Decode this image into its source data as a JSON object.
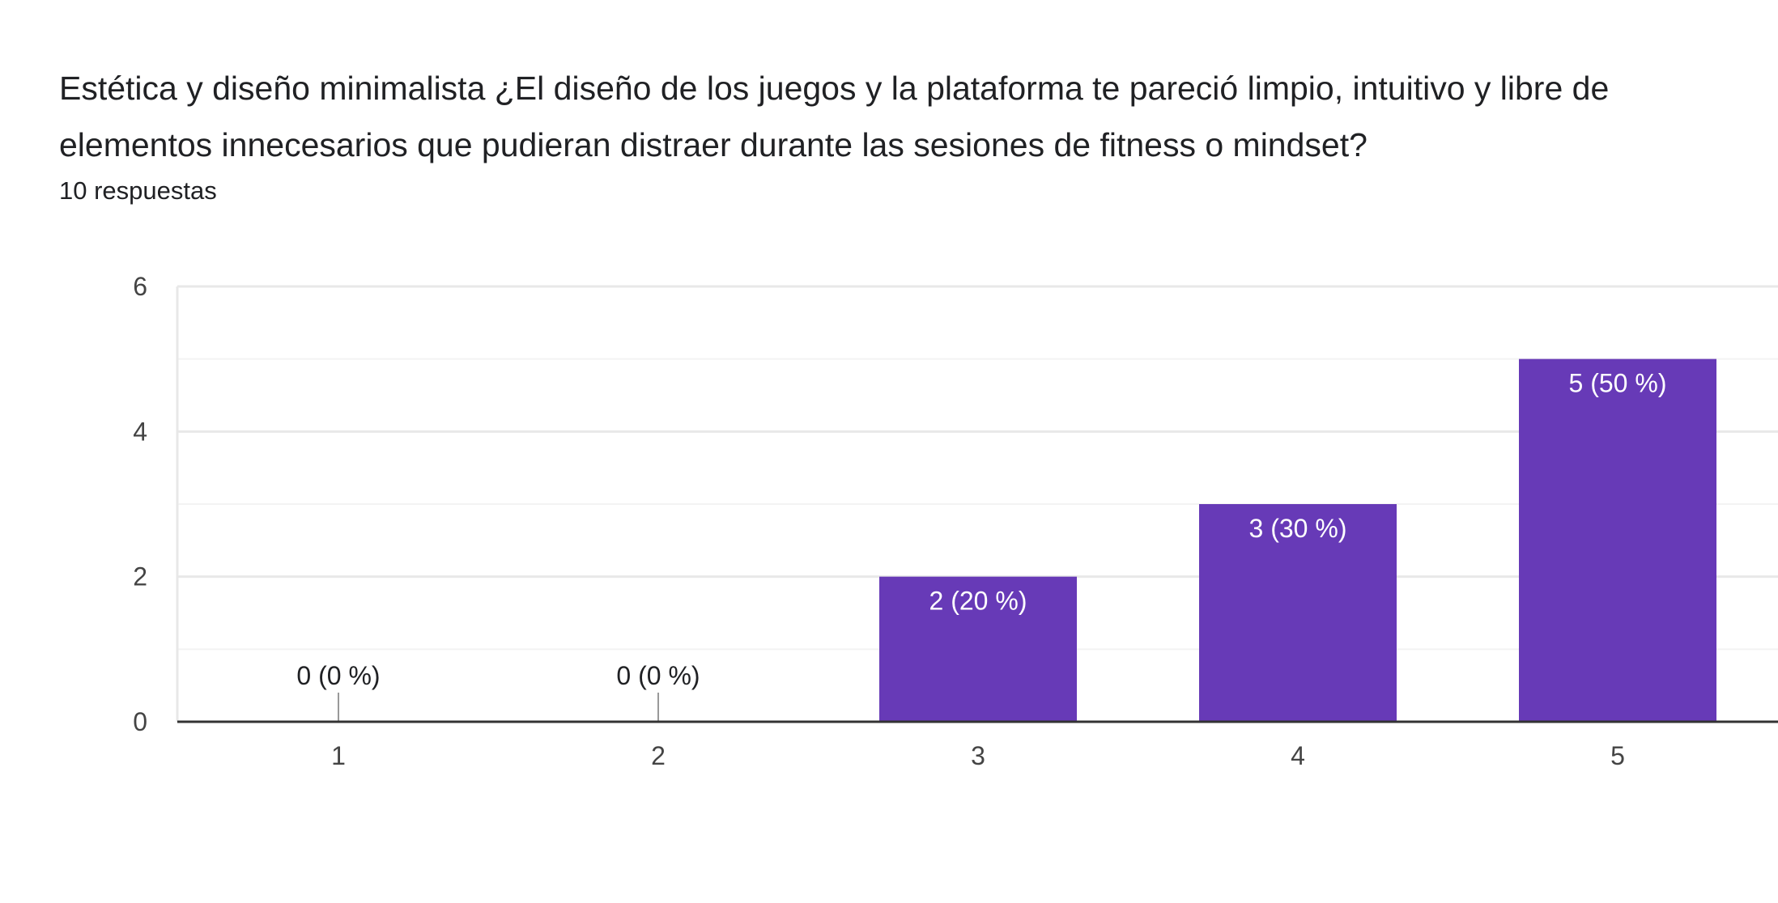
{
  "header": {
    "title": "Estética y diseño minimalista   ¿El diseño de los juegos y la plataforma te pareció limpio, intuitivo y libre de elementos innecesarios que pudieran distraer durante las sesiones de fitness o mindset?",
    "responses": "10 respuestas"
  },
  "colors": {
    "bar": "#673ab7",
    "grid": "#e8e8e8",
    "axis": "#333333",
    "label_inside": "#ffffff",
    "label_outside": "#202124",
    "zero_tick": "#999999"
  },
  "chart_data": {
    "type": "bar",
    "categories": [
      "1",
      "2",
      "3",
      "4",
      "5"
    ],
    "values": [
      0,
      0,
      2,
      3,
      5
    ],
    "labels": [
      "0 (0 %)",
      "0 (0 %)",
      "2 (20 %)",
      "3 (30 %)",
      "5 (50 %)"
    ],
    "ylim": [
      0,
      6
    ],
    "yticks": [
      "0",
      "2",
      "4",
      "6"
    ],
    "grid": true,
    "minor_grid": true,
    "legend": "none"
  }
}
